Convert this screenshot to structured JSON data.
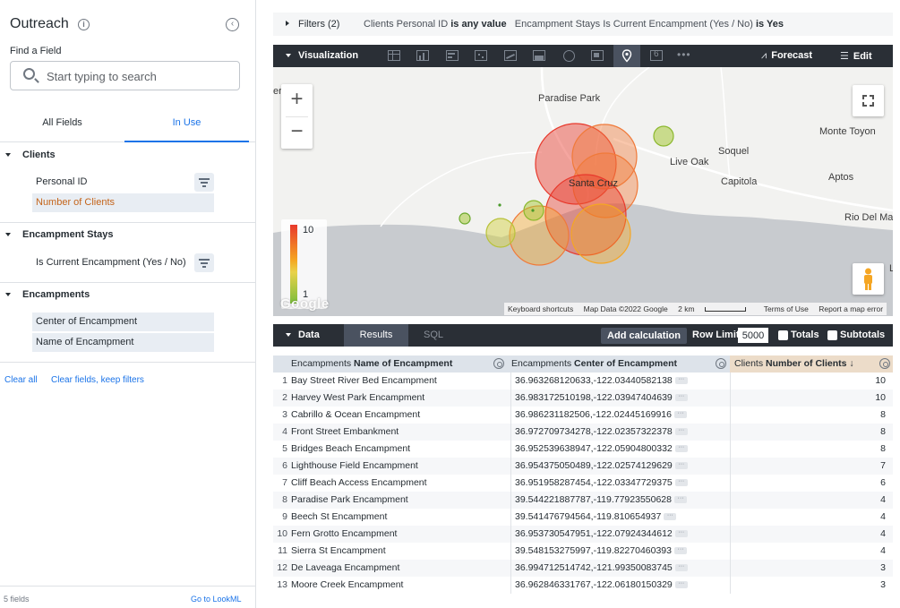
{
  "sidebar": {
    "title": "Outreach",
    "find_label": "Find a Field",
    "search_placeholder": "Start typing to search",
    "tabs": [
      "All Fields",
      "In Use"
    ],
    "groups": [
      {
        "name": "Clients",
        "fields": [
          "Personal ID",
          "Number of Clients"
        ]
      },
      {
        "name": "Encampment Stays",
        "fields": [
          "Is Current Encampment (Yes / No)"
        ]
      },
      {
        "name": "Encampments",
        "fields": [
          "Center of Encampment",
          "Name of Encampment"
        ]
      }
    ],
    "clear_all": "Clear all",
    "clear_fields": "Clear fields, keep filters",
    "field_count": "5 fields",
    "go_lookml": "Go to LookML"
  },
  "filters": {
    "label": "Filters (2)",
    "f1_field": "Clients Personal ID",
    "f1_rest": "is any value",
    "f2_field": "Encampment Stays Is Current Encampment (Yes / No)",
    "f2_rest": "is Yes"
  },
  "viz": {
    "label": "Visualization",
    "forecast": "Forecast",
    "edit": "Edit",
    "single_value_icon": "6",
    "more": "•••"
  },
  "map": {
    "places": [
      "Paradise Park",
      "Soquel",
      "Monte Toyon",
      "Live Oak",
      "Capitola",
      "Aptos",
      "Santa Cruz",
      "Rio Del Mar",
      "er",
      "L"
    ],
    "legend_max": "10",
    "legend_min": "1",
    "google": "Google",
    "attribution": [
      "Keyboard shortcuts",
      "Map Data ©2022 Google",
      "2 km",
      "Terms of Use",
      "Report a map error"
    ],
    "zoom_in": "+",
    "zoom_out": "−",
    "colors": {
      "high": "#e8392c",
      "mid": "#f5a623",
      "low": "#7cbd3c"
    }
  },
  "data": {
    "label": "Data",
    "tab_results": "Results",
    "tab_sql": "SQL",
    "add_calc": "Add calculation",
    "row_limit_label": "Row Limit",
    "row_limit": "5000",
    "totals": "Totals",
    "subtotals": "Subtotals"
  },
  "table": {
    "headers": [
      {
        "view": "Encampments",
        "field": "Name of Encampment"
      },
      {
        "view": "Encampments",
        "field": "Center of Encampment"
      },
      {
        "view": "Clients",
        "field": "Number of Clients ↓"
      }
    ],
    "rows": [
      [
        "1",
        "Bay Street River Bed Encampment",
        "36.963268120633,-122.03440582138",
        "10"
      ],
      [
        "2",
        "Harvey West Park Encampment",
        "36.983172510198,-122.03947404639",
        "10"
      ],
      [
        "3",
        "Cabrillo & Ocean Encampment",
        "36.986231182506,-122.02445169916",
        "8"
      ],
      [
        "4",
        "Front Street Embankment",
        "36.972709734278,-122.02357322378",
        "8"
      ],
      [
        "5",
        "Bridges Beach Encampment",
        "36.952539638947,-122.05904800332",
        "8"
      ],
      [
        "6",
        "Lighthouse Field Encampment",
        "36.954375050489,-122.02574129629",
        "7"
      ],
      [
        "7",
        "Cliff Beach Access Encampment",
        "36.951958287454,-122.03347729375",
        "6"
      ],
      [
        "8",
        "Paradise Park Encampment",
        "39.544221887787,-119.77923550628",
        "4"
      ],
      [
        "9",
        "Beech St Encampment",
        "39.541476794564,-119.810654937",
        "4"
      ],
      [
        "10",
        "Fern Grotto Encampment",
        "36.953730547951,-122.07924344612",
        "4"
      ],
      [
        "11",
        "Sierra St Encampment",
        "39.548153275997,-119.82270460393",
        "4"
      ],
      [
        "12",
        "De Laveaga Encampment",
        "36.994712514742,-121.99350083745",
        "3"
      ],
      [
        "13",
        "Moore Creek Encampment",
        "36.962846331767,-122.06180150329",
        "3"
      ]
    ]
  }
}
